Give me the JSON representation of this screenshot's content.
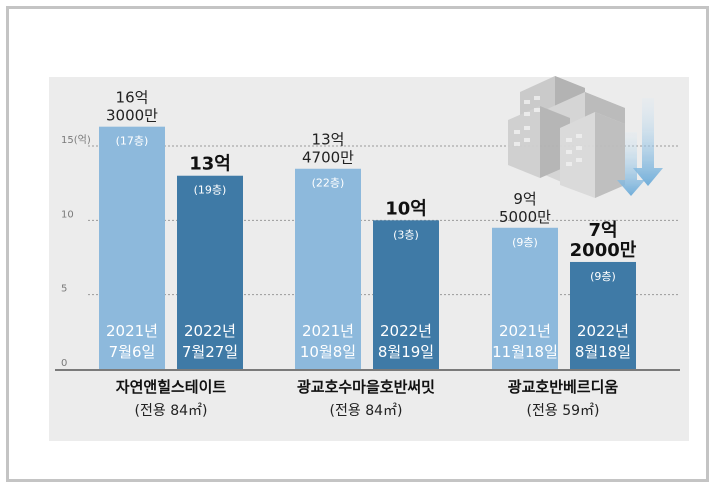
{
  "chart_data": {
    "type": "bar",
    "ylim": [
      0,
      15
    ],
    "yunit": "(억)",
    "yticks": [
      {
        "value": 0,
        "label": "0"
      },
      {
        "value": 5,
        "label": "5"
      },
      {
        "value": 10,
        "label": "10"
      },
      {
        "value": 15,
        "label": "15"
      }
    ],
    "groups": [
      {
        "name": "자연앤힐스테이트",
        "area": "(전용 84㎡)",
        "bars": [
          {
            "value": 16.3,
            "price": [
              "16억",
              "3000만"
            ],
            "floor": "(17층)",
            "date": [
              "2021년",
              "7월6일"
            ],
            "highlight": false
          },
          {
            "value": 13.0,
            "price": [
              "13억"
            ],
            "floor": "(19층)",
            "date": [
              "2022년",
              "7월27일"
            ],
            "highlight": true
          }
        ]
      },
      {
        "name": "광교호수마을호반써밋",
        "area": "(전용 84㎡)",
        "bars": [
          {
            "value": 13.47,
            "price": [
              "13억",
              "4700만"
            ],
            "floor": "(22층)",
            "date": [
              "2021년",
              "10월8일"
            ],
            "highlight": false
          },
          {
            "value": 10.0,
            "price": [
              "10억"
            ],
            "floor": "(3층)",
            "date": [
              "2022년",
              "8월19일"
            ],
            "highlight": true
          }
        ]
      },
      {
        "name": "광교호반베르디움",
        "area": "(전용 59㎡)",
        "bars": [
          {
            "value": 9.5,
            "price": [
              "9억",
              "5000만"
            ],
            "floor": "(9층)",
            "date": [
              "2021년",
              "11월18일"
            ],
            "highlight": false
          },
          {
            "value": 7.2,
            "price": [
              "7억",
              "2000만"
            ],
            "floor": "(9층)",
            "date": [
              "2022년",
              "8월18일"
            ],
            "highlight": true
          }
        ]
      }
    ]
  },
  "colors": {
    "bar_light": "#8db9dc",
    "bar_dark": "#3f7aa6",
    "bar_text": "#ffffff",
    "axis_text": "#7a7a7a",
    "label_text": "#222222"
  },
  "illustration": {
    "name": "apartment-buildings-falling-icon"
  }
}
